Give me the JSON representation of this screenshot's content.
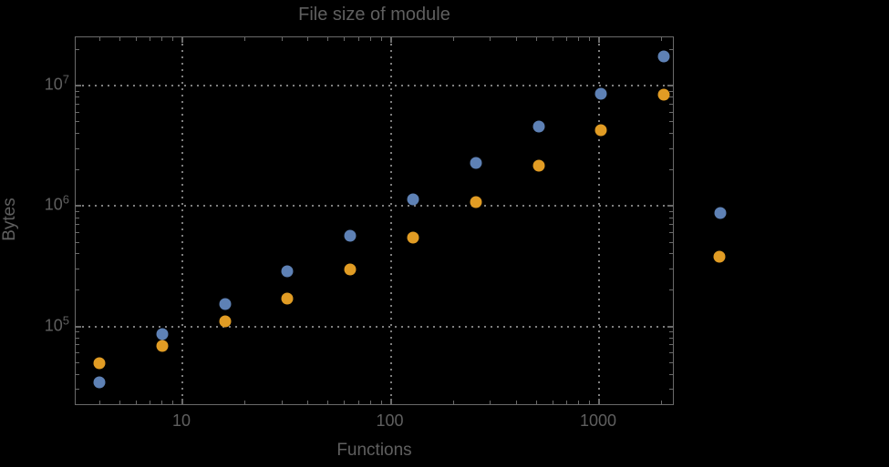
{
  "chart_data": {
    "type": "scatter",
    "title": "File size of module",
    "xlabel": "Functions",
    "ylabel": "Bytes",
    "x_scale": "log",
    "y_scale": "log",
    "xlim": [
      3.1,
      2300
    ],
    "ylim": [
      22000,
      25000000
    ],
    "grid": "dotted",
    "x_ticks": [
      {
        "value": 10,
        "label": "10"
      },
      {
        "value": 100,
        "label": "100"
      },
      {
        "value": 1000,
        "label": "1000"
      }
    ],
    "y_ticks": [
      {
        "value": 100000,
        "base": "10",
        "exp": "5"
      },
      {
        "value": 1000000,
        "base": "10",
        "exp": "6"
      },
      {
        "value": 10000000,
        "base": "10",
        "exp": "7"
      }
    ],
    "x": [
      4,
      8,
      16,
      32,
      64,
      128,
      256,
      512,
      1024,
      2048
    ],
    "series": [
      {
        "name": "blue",
        "color": "#5E81B5",
        "values": [
          34500,
          85500,
          152000,
          285000,
          562000,
          1130000,
          2270000,
          4560000,
          8550000,
          17500000
        ]
      },
      {
        "name": "orange",
        "color": "#E19C24",
        "values": [
          49000,
          69000,
          111000,
          169000,
          295000,
          543000,
          1070000,
          2150000,
          4250000,
          8400000
        ]
      }
    ],
    "legend": {
      "position": "right-outside",
      "labels_visible": false
    }
  },
  "colors": {
    "background": "#000000",
    "text": "#5f5f5f",
    "frame": "#6a6a6a",
    "grid": "#7e7e7e"
  }
}
